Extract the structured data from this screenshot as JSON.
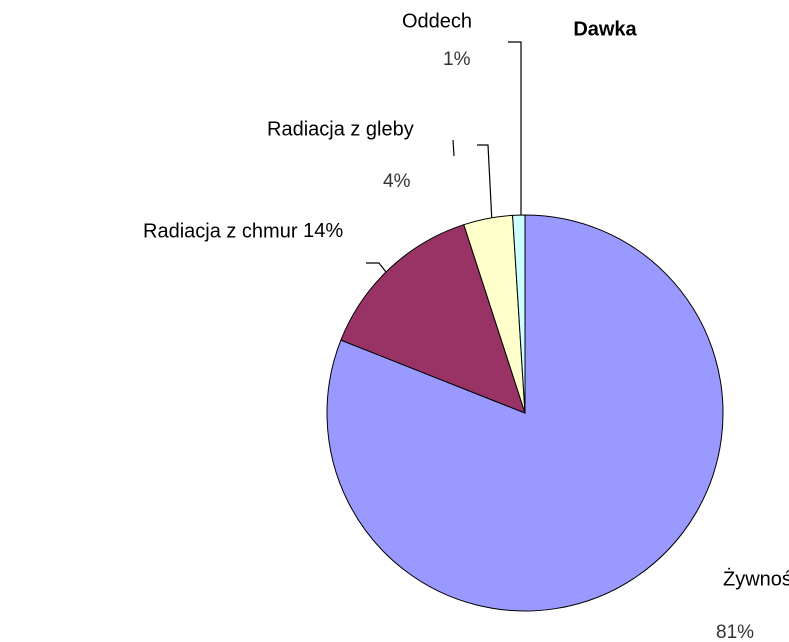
{
  "chart_data": {
    "type": "pie",
    "title": "Dawka",
    "categories": [
      "Żywność",
      "Radiacja z chmur",
      "Radiacja z gleby",
      "Oddech"
    ],
    "values": [
      81,
      14,
      4,
      1
    ],
    "value_labels": [
      "81%",
      "14%",
      "4%",
      "1%"
    ],
    "colors": [
      "#9999ff",
      "#993366",
      "#ffffcc",
      "#ccffff"
    ]
  }
}
